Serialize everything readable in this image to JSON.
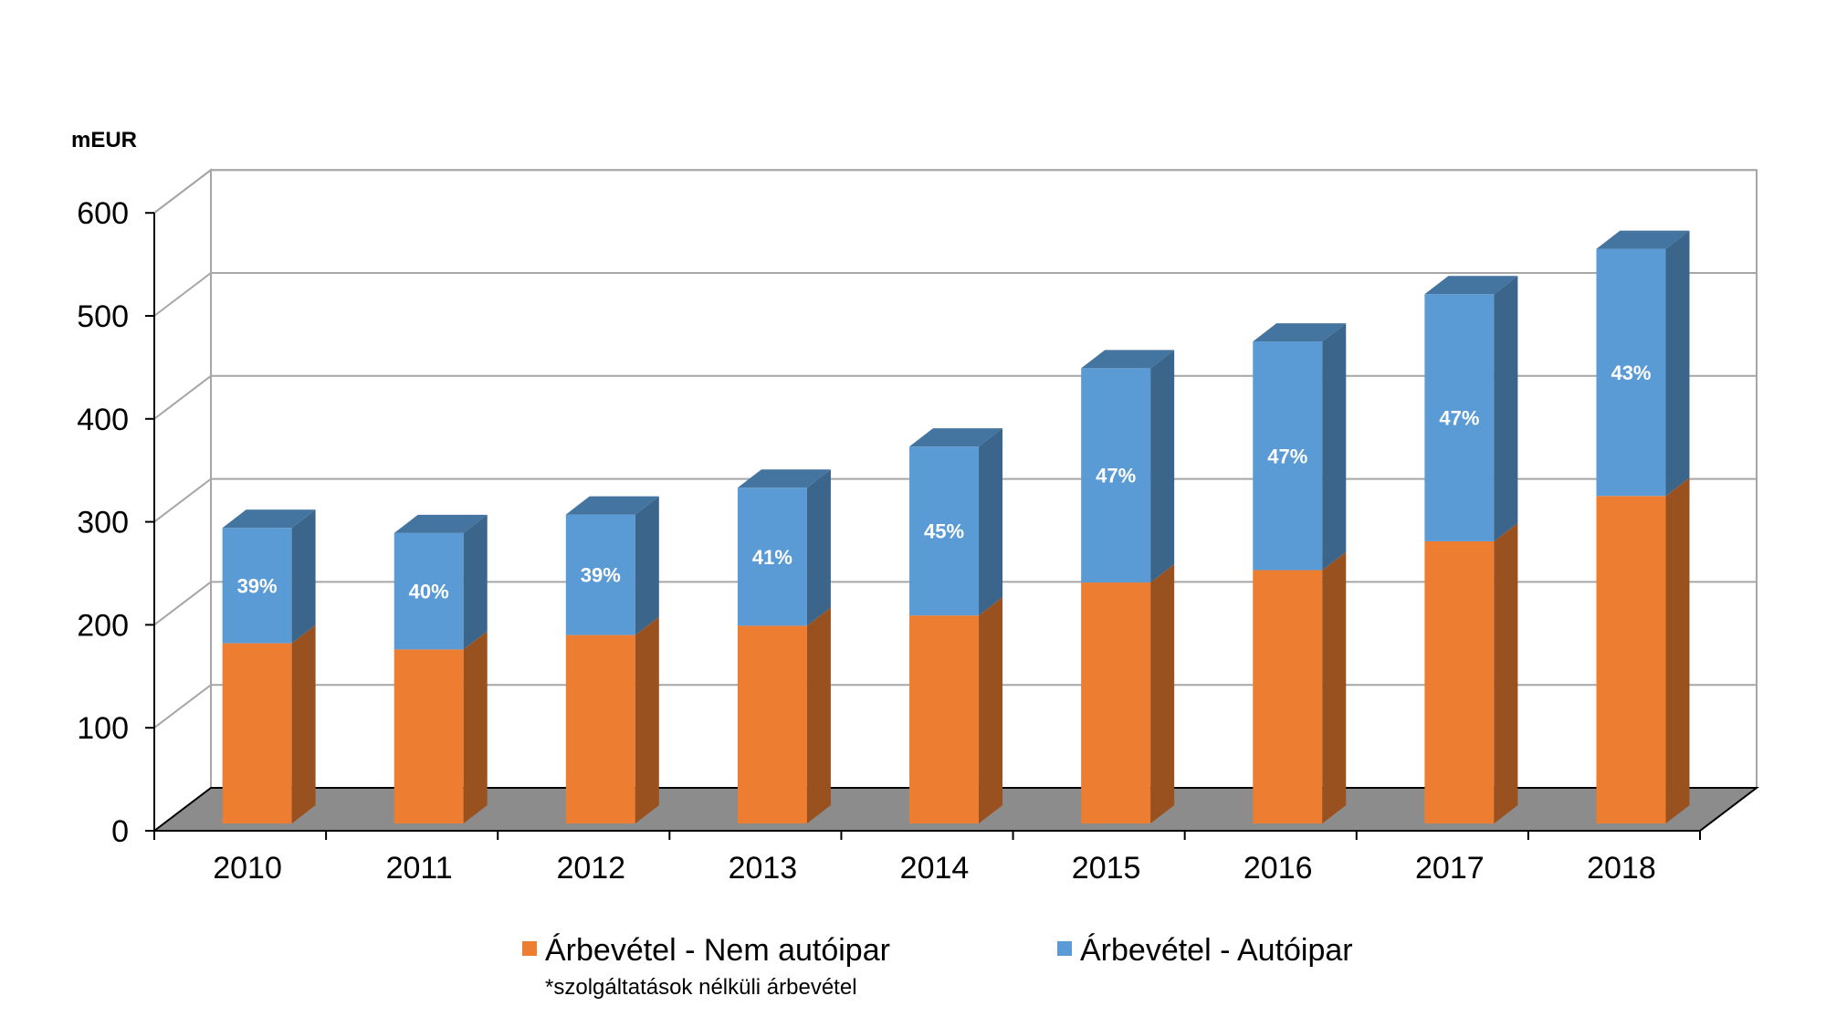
{
  "chart_data": {
    "type": "bar",
    "stacked": true,
    "three_d": true,
    "unit_label": "mEUR",
    "categories": [
      "2010",
      "2011",
      "2012",
      "2013",
      "2014",
      "2015",
      "2016",
      "2017",
      "2018"
    ],
    "series": [
      {
        "name": "Árbevétel - Nem autóipar",
        "color": "#ED7D31",
        "values": [
          175,
          169,
          183,
          192,
          202,
          234,
          246,
          274,
          318
        ]
      },
      {
        "name": "Árbevétel - Autóipar",
        "color": "#5B9BD5",
        "values": [
          112,
          113,
          117,
          134,
          164,
          208,
          222,
          240,
          240
        ],
        "labels": [
          "39%",
          "40%",
          "39%",
          "41%",
          "45%",
          "47%",
          "47%",
          "47%",
          "43%"
        ]
      }
    ],
    "ylim": [
      0,
      600
    ],
    "y_ticks": [
      "0",
      "100",
      "200",
      "300",
      "400",
      "500",
      "600"
    ],
    "grid": true,
    "legend_position": "bottom",
    "footnote": "*szolgáltatások nélküli árbevétel"
  }
}
